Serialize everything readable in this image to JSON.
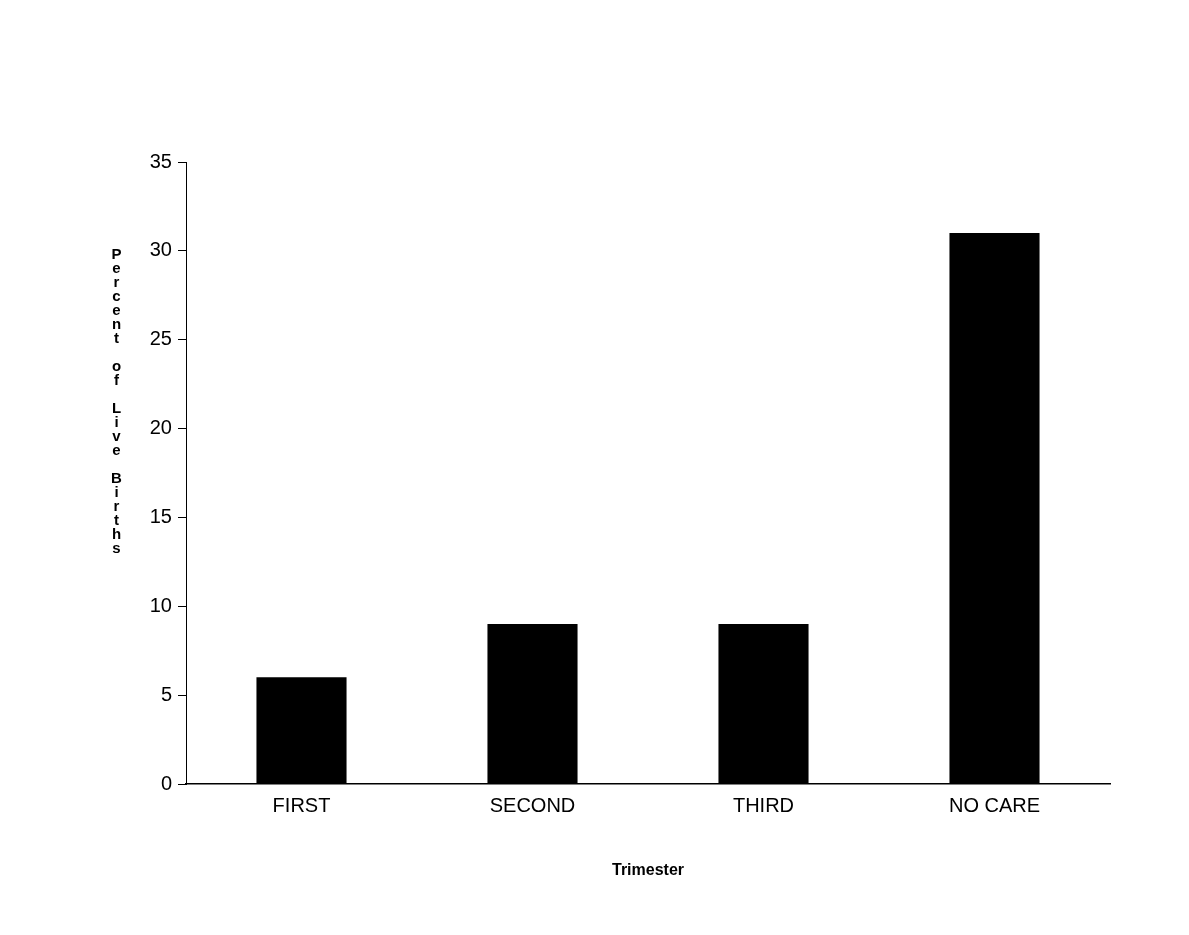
{
  "chart_data": {
    "type": "bar",
    "xlabel": "Trimester",
    "ylabel": "Percent of Live Births",
    "categories": [
      "FIRST",
      "SECOND",
      "THIRD",
      "NO CARE"
    ],
    "values": [
      6,
      9,
      9,
      31
    ],
    "color": "#000000",
    "ylim": [
      0,
      35
    ],
    "yticks": [
      0,
      5,
      10,
      15,
      20,
      25,
      30,
      35
    ],
    "grid": false,
    "legend": false
  }
}
